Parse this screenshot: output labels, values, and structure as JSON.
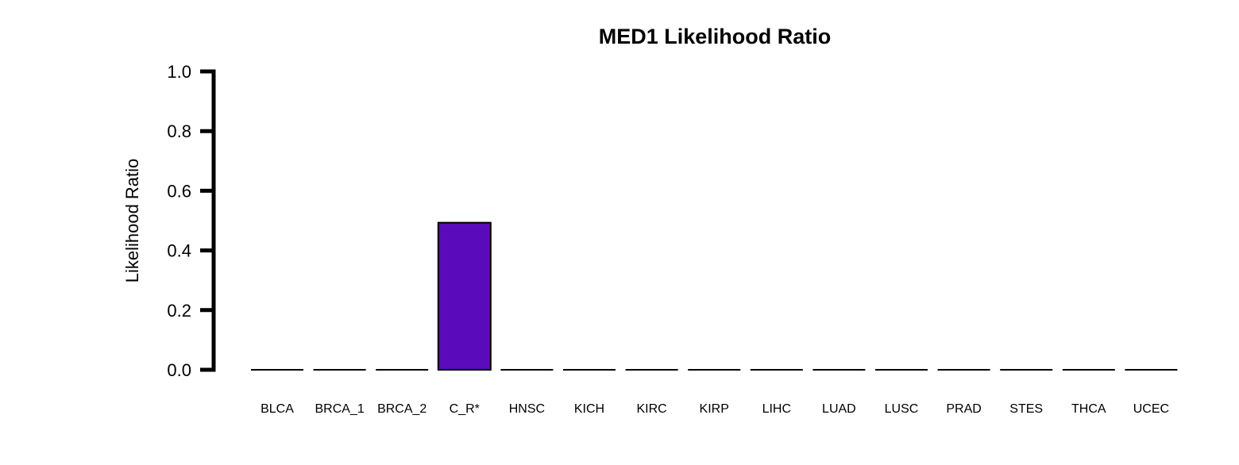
{
  "chart_data": {
    "type": "bar",
    "title": "MED1 Likelihood Ratio",
    "xlabel": "",
    "ylabel": "Likelihood Ratio",
    "ylim": [
      0,
      1
    ],
    "yticks": [
      "0.0",
      "0.2",
      "0.4",
      "0.6",
      "0.8",
      "1.0"
    ],
    "ytick_values": [
      0,
      0.2,
      0.4,
      0.6,
      0.8,
      1.0
    ],
    "categories": [
      "BLCA",
      "BRCA_1",
      "BRCA_2",
      "C_R*",
      "HNSC",
      "KICH",
      "KIRC",
      "KIRP",
      "LIHC",
      "LUAD",
      "LUSC",
      "PRAD",
      "STES",
      "THCA",
      "UCEC"
    ],
    "values": [
      0,
      0,
      0,
      0.493,
      0,
      0,
      0,
      0,
      0,
      0,
      0,
      0,
      0,
      0,
      0
    ],
    "bar_color": "#5b0abb",
    "bar_edge_color": "#000000",
    "grid": false,
    "legend": false
  }
}
